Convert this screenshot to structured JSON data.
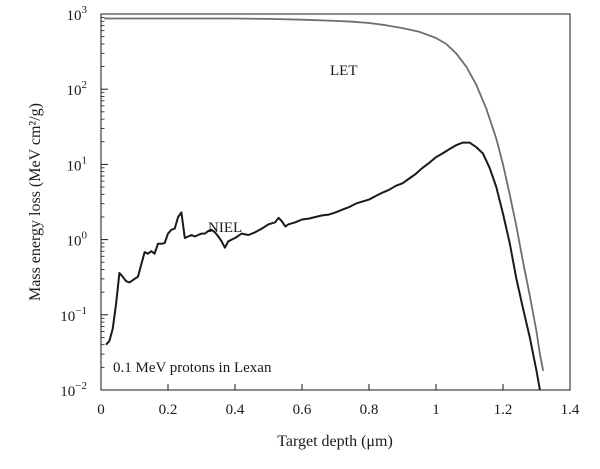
{
  "chart_data": {
    "type": "line",
    "title": "",
    "xlabel": "Target depth (μm)",
    "ylabel": "Mass energy loss (MeV cm²/g)",
    "xlim": [
      0,
      1.4
    ],
    "ylim": [
      0.01,
      1000
    ],
    "yscale": "log",
    "grid": false,
    "legend": "none",
    "x_ticks": [
      "0",
      "0.2",
      "0.4",
      "0.6",
      "0.8",
      "1",
      "1.2",
      "1.4"
    ],
    "x_tick_values": [
      0,
      0.2,
      0.4,
      0.6,
      0.8,
      1.0,
      1.2,
      1.4
    ],
    "y_ticks": [
      {
        "base": "10",
        "exp": "−2",
        "value": 0.01
      },
      {
        "base": "10",
        "exp": "−1",
        "value": 0.1
      },
      {
        "base": "10",
        "exp": "0",
        "value": 1
      },
      {
        "base": "10",
        "exp": "1",
        "value": 10
      },
      {
        "base": "10",
        "exp": "2",
        "value": 100
      },
      {
        "base": "10",
        "exp": "3",
        "value": 1000
      }
    ],
    "annotation": "0.1 MeV protons in Lexan",
    "series": [
      {
        "name": "LET",
        "color": "#6e6e6e",
        "x": [
          0.01,
          0.1,
          0.2,
          0.3,
          0.4,
          0.5,
          0.6,
          0.7,
          0.75,
          0.8,
          0.85,
          0.9,
          0.95,
          1.0,
          1.03,
          1.06,
          1.09,
          1.12,
          1.15,
          1.18,
          1.2,
          1.22,
          1.24,
          1.26,
          1.28,
          1.3,
          1.31,
          1.32
        ],
        "y": [
          870,
          870,
          870,
          870,
          870,
          860,
          840,
          810,
          790,
          760,
          710,
          650,
          580,
          480,
          400,
          300,
          200,
          115,
          55,
          22,
          10,
          4,
          1.5,
          0.5,
          0.18,
          0.06,
          0.03,
          0.018
        ]
      },
      {
        "name": "NIEL",
        "color": "#1a1a1a",
        "x": [
          0.015,
          0.025,
          0.035,
          0.045,
          0.055,
          0.065,
          0.075,
          0.085,
          0.1,
          0.11,
          0.13,
          0.14,
          0.15,
          0.16,
          0.17,
          0.18,
          0.19,
          0.2,
          0.21,
          0.22,
          0.23,
          0.24,
          0.25,
          0.26,
          0.27,
          0.28,
          0.29,
          0.3,
          0.31,
          0.32,
          0.33,
          0.34,
          0.35,
          0.36,
          0.37,
          0.38,
          0.39,
          0.4,
          0.42,
          0.44,
          0.46,
          0.48,
          0.5,
          0.52,
          0.53,
          0.54,
          0.55,
          0.56,
          0.58,
          0.6,
          0.62,
          0.64,
          0.66,
          0.68,
          0.7,
          0.72,
          0.74,
          0.76,
          0.78,
          0.8,
          0.82,
          0.84,
          0.86,
          0.88,
          0.9,
          0.92,
          0.94,
          0.96,
          0.98,
          1.0,
          1.02,
          1.04,
          1.06,
          1.08,
          1.1,
          1.12,
          1.14,
          1.16,
          1.18,
          1.2,
          1.22,
          1.24,
          1.26,
          1.28,
          1.3,
          1.31
        ],
        "y": [
          0.04,
          0.045,
          0.065,
          0.14,
          0.36,
          0.32,
          0.28,
          0.27,
          0.3,
          0.32,
          0.68,
          0.65,
          0.7,
          0.65,
          0.88,
          0.88,
          0.9,
          1.2,
          1.35,
          1.4,
          2.0,
          2.3,
          1.05,
          1.1,
          1.15,
          1.1,
          1.15,
          1.2,
          1.2,
          1.3,
          1.35,
          1.25,
          1.1,
          0.95,
          0.78,
          0.95,
          1.0,
          1.05,
          1.2,
          1.15,
          1.25,
          1.4,
          1.6,
          1.7,
          1.95,
          1.75,
          1.5,
          1.6,
          1.7,
          1.85,
          1.9,
          2.0,
          2.1,
          2.15,
          2.3,
          2.5,
          2.7,
          3.0,
          3.2,
          3.4,
          3.8,
          4.2,
          4.6,
          5.2,
          5.6,
          6.5,
          7.5,
          9.0,
          10.5,
          12.5,
          14,
          16,
          18,
          19.5,
          19.5,
          17,
          14,
          9,
          5,
          2.2,
          0.9,
          0.3,
          0.12,
          0.05,
          0.018,
          0.01
        ]
      }
    ],
    "labels": {
      "let": "LET",
      "niel": "NIEL"
    }
  }
}
